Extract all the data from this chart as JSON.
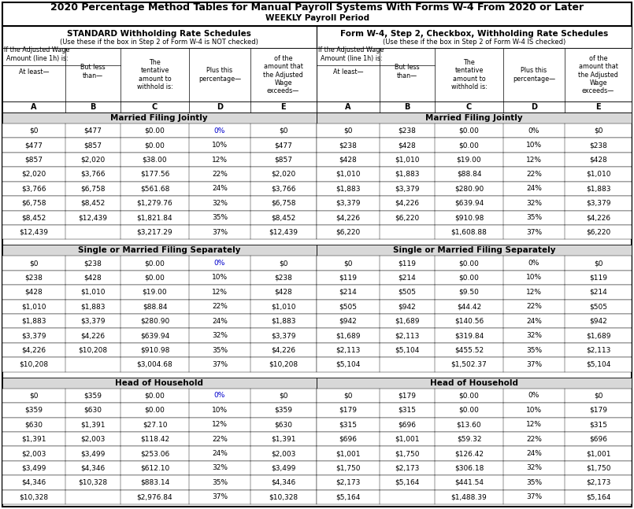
{
  "title": "2020 Percentage Method Tables for Manual Payroll Systems With Forms W-4 From 2020 or Later",
  "subtitle": "WEEKLY Payroll Period",
  "left_header1": "STANDARD Withholding Rate Schedules",
  "left_header2": "(Use these if the box in Step 2 of Form W-4 is NOT checked)",
  "right_header1": "Form W-4, Step 2, Checkbox, Withholding Rate Schedules",
  "right_header2": "(Use these if the box in Step 2 of Form W-4 IS checked)",
  "sections": [
    {
      "name": "Married Filing Jointly",
      "left": [
        [
          "$0",
          "$477",
          "$0.00",
          "0%",
          "$0"
        ],
        [
          "$477",
          "$857",
          "$0.00",
          "10%",
          "$477"
        ],
        [
          "$857",
          "$2,020",
          "$38.00",
          "12%",
          "$857"
        ],
        [
          "$2,020",
          "$3,766",
          "$177.56",
          "22%",
          "$2,020"
        ],
        [
          "$3,766",
          "$6,758",
          "$561.68",
          "24%",
          "$3,766"
        ],
        [
          "$6,758",
          "$8,452",
          "$1,279.76",
          "32%",
          "$6,758"
        ],
        [
          "$8,452",
          "$12,439",
          "$1,821.84",
          "35%",
          "$8,452"
        ],
        [
          "$12,439",
          "",
          "$3,217.29",
          "37%",
          "$12,439"
        ]
      ],
      "right": [
        [
          "$0",
          "$238",
          "$0.00",
          "0%",
          "$0"
        ],
        [
          "$238",
          "$428",
          "$0.00",
          "10%",
          "$238"
        ],
        [
          "$428",
          "$1,010",
          "$19.00",
          "12%",
          "$428"
        ],
        [
          "$1,010",
          "$1,883",
          "$88.84",
          "22%",
          "$1,010"
        ],
        [
          "$1,883",
          "$3,379",
          "$280.90",
          "24%",
          "$1,883"
        ],
        [
          "$3,379",
          "$4,226",
          "$639.94",
          "32%",
          "$3,379"
        ],
        [
          "$4,226",
          "$6,220",
          "$910.98",
          "35%",
          "$4,226"
        ],
        [
          "$6,220",
          "",
          "$1,608.88",
          "37%",
          "$6,220"
        ]
      ]
    },
    {
      "name": "Single or Married Filing Separately",
      "left": [
        [
          "$0",
          "$238",
          "$0.00",
          "0%",
          "$0"
        ],
        [
          "$238",
          "$428",
          "$0.00",
          "10%",
          "$238"
        ],
        [
          "$428",
          "$1,010",
          "$19.00",
          "12%",
          "$428"
        ],
        [
          "$1,010",
          "$1,883",
          "$88.84",
          "22%",
          "$1,010"
        ],
        [
          "$1,883",
          "$3,379",
          "$280.90",
          "24%",
          "$1,883"
        ],
        [
          "$3,379",
          "$4,226",
          "$639.94",
          "32%",
          "$3,379"
        ],
        [
          "$4,226",
          "$10,208",
          "$910.98",
          "35%",
          "$4,226"
        ],
        [
          "$10,208",
          "",
          "$3,004.68",
          "37%",
          "$10,208"
        ]
      ],
      "right": [
        [
          "$0",
          "$119",
          "$0.00",
          "0%",
          "$0"
        ],
        [
          "$119",
          "$214",
          "$0.00",
          "10%",
          "$119"
        ],
        [
          "$214",
          "$505",
          "$9.50",
          "12%",
          "$214"
        ],
        [
          "$505",
          "$942",
          "$44.42",
          "22%",
          "$505"
        ],
        [
          "$942",
          "$1,689",
          "$140.56",
          "24%",
          "$942"
        ],
        [
          "$1,689",
          "$2,113",
          "$319.84",
          "32%",
          "$1,689"
        ],
        [
          "$2,113",
          "$5,104",
          "$455.52",
          "35%",
          "$2,113"
        ],
        [
          "$5,104",
          "",
          "$1,502.37",
          "37%",
          "$5,104"
        ]
      ]
    },
    {
      "name": "Head of Household",
      "left": [
        [
          "$0",
          "$359",
          "$0.00",
          "0%",
          "$0"
        ],
        [
          "$359",
          "$630",
          "$0.00",
          "10%",
          "$359"
        ],
        [
          "$630",
          "$1,391",
          "$27.10",
          "12%",
          "$630"
        ],
        [
          "$1,391",
          "$2,003",
          "$118.42",
          "22%",
          "$1,391"
        ],
        [
          "$2,003",
          "$3,499",
          "$253.06",
          "24%",
          "$2,003"
        ],
        [
          "$3,499",
          "$4,346",
          "$612.10",
          "32%",
          "$3,499"
        ],
        [
          "$4,346",
          "$10,328",
          "$883.14",
          "35%",
          "$4,346"
        ],
        [
          "$10,328",
          "",
          "$2,976.84",
          "37%",
          "$10,328"
        ]
      ],
      "right": [
        [
          "$0",
          "$179",
          "$0.00",
          "0%",
          "$0"
        ],
        [
          "$179",
          "$315",
          "$0.00",
          "10%",
          "$179"
        ],
        [
          "$315",
          "$696",
          "$13.60",
          "12%",
          "$315"
        ],
        [
          "$696",
          "$1,001",
          "$59.32",
          "22%",
          "$696"
        ],
        [
          "$1,001",
          "$1,750",
          "$126.42",
          "24%",
          "$1,001"
        ],
        [
          "$1,750",
          "$2,173",
          "$306.18",
          "32%",
          "$1,750"
        ],
        [
          "$2,173",
          "$5,164",
          "$441.54",
          "35%",
          "$2,173"
        ],
        [
          "$5,164",
          "",
          "$1,488.39",
          "37%",
          "$5,164"
        ]
      ]
    }
  ],
  "lcols": [
    3,
    83,
    153,
    240,
    318,
    401
  ],
  "rcols": [
    402,
    482,
    552,
    639,
    717,
    802
  ],
  "zero_pct_color": "#0000cc",
  "section_bg": "#d8d8d8",
  "title_fs": 9.0,
  "subtitle_fs": 7.5,
  "header1_fs": 7.5,
  "header2_fs": 6.0,
  "col_hdr_fs": 6.0,
  "label_fs": 7.0,
  "section_fs": 7.5,
  "data_fs": 6.5
}
